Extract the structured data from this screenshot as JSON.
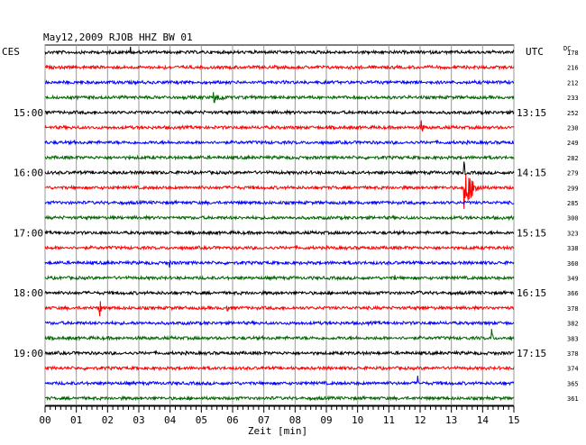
{
  "chart_data": {
    "type": "line",
    "title": "May12,2009  RJOB HHZ BW 01",
    "left_axis_label": "CES",
    "right_axis_label": "UTC",
    "dc_label": "DC",
    "xlabel": "Zeit [min]",
    "xlim": [
      0,
      15
    ],
    "x_ticks": [
      "00",
      "01",
      "02",
      "03",
      "04",
      "05",
      "06",
      "07",
      "08",
      "09",
      "10",
      "11",
      "12",
      "13",
      "14",
      "15"
    ],
    "left_hour_labels": [
      "15:00",
      "16:00",
      "17:00",
      "18:00",
      "19:00"
    ],
    "right_hour_labels": [
      "13:15",
      "14:15",
      "15:15",
      "16:15",
      "17:15"
    ],
    "hour_label_rows": [
      4,
      8,
      12,
      16,
      20
    ],
    "dc_offsets": [
      178,
      216,
      212,
      233,
      252,
      230,
      249,
      282,
      279,
      299,
      285,
      300,
      323,
      338,
      360,
      349,
      366,
      378,
      382,
      383,
      378,
      374,
      365,
      361
    ],
    "trace_colors": [
      "#000000",
      "#ff0000",
      "#0000ff",
      "#006400"
    ],
    "noise_level": 2,
    "events": [
      {
        "trace": 0,
        "minute": 2.75,
        "amplitude": 8,
        "duration_min": 0.05
      },
      {
        "trace": 1,
        "minute": 3.8,
        "amplitude": 3,
        "duration_min": 0.2
      },
      {
        "trace": 3,
        "minute": 5.4,
        "amplitude": 7,
        "duration_min": 0.7
      },
      {
        "trace": 5,
        "minute": 12.05,
        "amplitude": 10,
        "duration_min": 0.12
      },
      {
        "trace": 8,
        "minute": 9.05,
        "amplitude": 10,
        "duration_min": 0.05
      },
      {
        "trace": 8,
        "minute": 13.4,
        "amplitude": 14,
        "duration_min": 0.1
      },
      {
        "trace": 9,
        "minute": 13.42,
        "amplitude": 26,
        "duration_min": 0.6
      },
      {
        "trace": 14,
        "minute": 4.0,
        "amplitude": 6,
        "duration_min": 0.1
      },
      {
        "trace": 15,
        "minute": 11.2,
        "amplitude": 4,
        "duration_min": 0.1
      },
      {
        "trace": 16,
        "minute": 12.0,
        "amplitude": 4,
        "duration_min": 0.05
      },
      {
        "trace": 17,
        "minute": 1.75,
        "amplitude": 14,
        "duration_min": 0.08
      },
      {
        "trace": 17,
        "minute": 5.8,
        "amplitude": 4,
        "duration_min": 0.5
      },
      {
        "trace": 17,
        "minute": 12.1,
        "amplitude": 3,
        "duration_min": 0.3
      },
      {
        "trace": 19,
        "minute": 14.3,
        "amplitude": 12,
        "duration_min": 0.06
      },
      {
        "trace": 22,
        "minute": 11.95,
        "amplitude": 9,
        "duration_min": 0.05
      }
    ]
  }
}
